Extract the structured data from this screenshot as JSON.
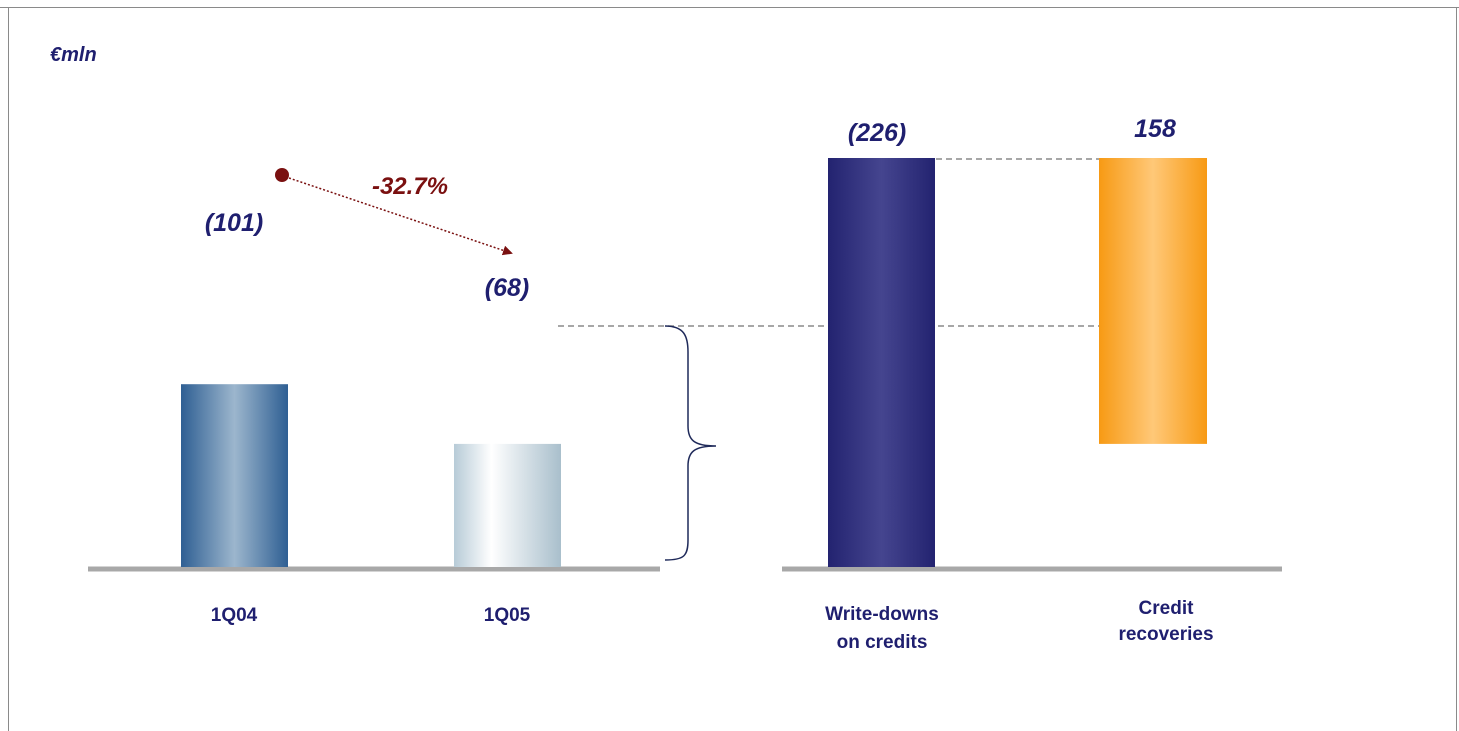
{
  "unit": "€mln",
  "colors": {
    "bar_1q04": "#3b6c9e",
    "bar_1q05": "#b8ccd8",
    "bar_writedowns": "#2e2e7e",
    "bar_recoveries": "#f4a31f",
    "text": "#1f1f6f",
    "delta": "#7a1010"
  },
  "chart_data": [
    {
      "type": "bar",
      "categories": [
        "1Q04",
        "1Q05"
      ],
      "values": [
        -101,
        -68
      ],
      "data_labels": [
        "(101)",
        "(68)"
      ],
      "annotation": "-32.7%",
      "grid": false
    },
    {
      "type": "bar",
      "subtype": "waterfall",
      "categories": [
        "Write-downs on credits",
        "Credit recoveries"
      ],
      "category_lines": [
        [
          "Write-downs",
          "on credits"
        ],
        [
          "Credit",
          "recoveries"
        ]
      ],
      "values": [
        -226,
        158
      ],
      "data_labels": [
        "(226)",
        "158"
      ],
      "net_result": -68,
      "grid": false
    }
  ]
}
